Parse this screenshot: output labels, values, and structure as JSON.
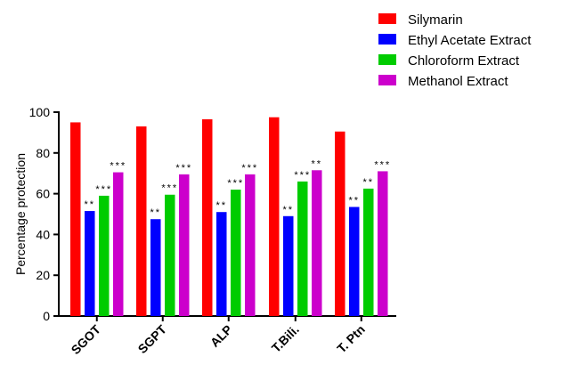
{
  "chart_data": {
    "type": "bar",
    "title": "",
    "xlabel": "",
    "ylabel": "Percentage protection",
    "ylim": [
      0,
      100
    ],
    "yticks": [
      0,
      20,
      40,
      60,
      80,
      100
    ],
    "grid": false,
    "legend_position": "top-right",
    "categories": [
      "SGOT",
      "SGPT",
      "ALP",
      "T.Bili.",
      "T. Ptn"
    ],
    "series": [
      {
        "name": "Silymarin",
        "color": "#ff0000",
        "values": [
          95,
          93,
          96.5,
          97.5,
          90.5
        ],
        "labels": [
          "",
          "",
          "",
          "",
          ""
        ]
      },
      {
        "name": "Ethyl Acetate Extract",
        "color": "#0000ff",
        "values": [
          51.5,
          47.5,
          51,
          49,
          53.5
        ],
        "labels": [
          "**",
          "**",
          "**",
          "**",
          "**"
        ]
      },
      {
        "name": "Chloroform Extract",
        "color": "#00cc00",
        "values": [
          59,
          59.5,
          62,
          66,
          62.5
        ],
        "labels": [
          "***",
          "***",
          "***",
          "***",
          "**"
        ]
      },
      {
        "name": "Methanol Extract",
        "color": "#cc00cc",
        "values": [
          70.5,
          69.5,
          69.5,
          71.5,
          71
        ],
        "labels": [
          "***",
          "***",
          "***",
          "**",
          "***"
        ]
      }
    ]
  }
}
